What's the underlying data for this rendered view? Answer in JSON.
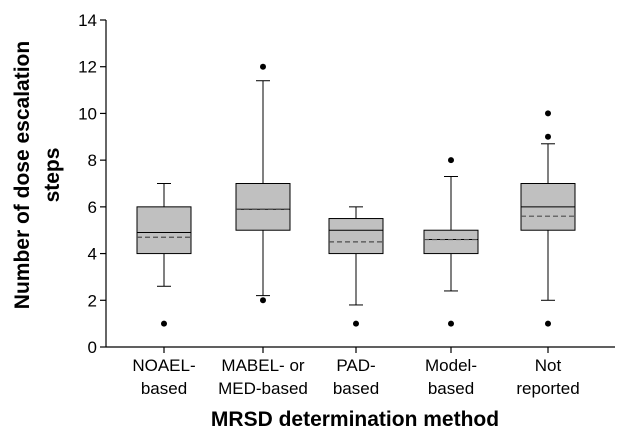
{
  "chart_data": {
    "type": "box",
    "xlabel": "MRSD determination method",
    "ylabel_line1": "Number of dose escalation",
    "ylabel_line2": "steps",
    "ylim": [
      0,
      14
    ],
    "yticks": [
      "0",
      "2",
      "4",
      "6",
      "8",
      "10",
      "12",
      "14"
    ],
    "legend": "none",
    "grid": false,
    "colors": {
      "box_fill": "#c0c0c0",
      "stroke": "#000000",
      "mean_line": "#4d4d4d"
    },
    "categories": [
      {
        "label_lines": [
          "NOAEL-",
          "based"
        ],
        "q1": 4,
        "median": 4.9,
        "mean": 4.7,
        "q3": 6,
        "whisker_low": 2.6,
        "whisker_high": 7,
        "outliers": [
          1
        ]
      },
      {
        "label_lines": [
          "MABEL- or",
          "MED-based"
        ],
        "q1": 5,
        "median": 5.9,
        "mean": 5.9,
        "q3": 7,
        "whisker_low": 2.2,
        "whisker_high": 11.4,
        "outliers": [
          2,
          12
        ]
      },
      {
        "label_lines": [
          "PAD-",
          "based"
        ],
        "q1": 4,
        "median": 5,
        "mean": 4.5,
        "q3": 5.5,
        "whisker_low": 1.8,
        "whisker_high": 6,
        "outliers": [
          1
        ]
      },
      {
        "label_lines": [
          "Model-",
          "based"
        ],
        "q1": 4,
        "median": 4.6,
        "mean": 4.6,
        "q3": 5,
        "whisker_low": 2.4,
        "whisker_high": 7.3,
        "outliers": [
          1,
          8
        ]
      },
      {
        "label_lines": [
          "Not",
          "reported"
        ],
        "q1": 5,
        "median": 6,
        "mean": 5.6,
        "q3": 7,
        "whisker_low": 2,
        "whisker_high": 8.7,
        "outliers": [
          1,
          9,
          10
        ]
      }
    ]
  }
}
